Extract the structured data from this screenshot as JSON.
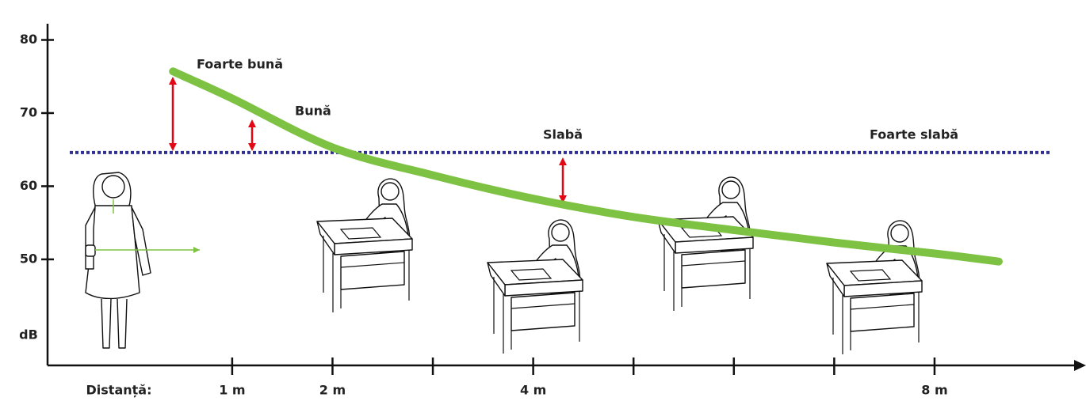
{
  "chart_data": {
    "type": "line",
    "x": [
      0.41,
      1,
      2,
      3,
      4,
      5,
      6,
      7,
      8,
      8.64
    ],
    "series": [
      {
        "color": "#7dc242",
        "values": [
          75.7,
          72,
          65.3,
          61.5,
          58.3,
          55.8,
          54,
          52.3,
          50.8,
          49.7
        ]
      }
    ],
    "threshold": {
      "value": 64.6,
      "color": "#2e3192"
    },
    "xlim": [
      -0.84,
      9.47
    ],
    "ylim": [
      35.5,
      82
    ],
    "xticks": [
      {
        "value": 1,
        "label": "1 m"
      },
      {
        "value": 2,
        "label": "2 m"
      },
      {
        "value": 3,
        "label": null
      },
      {
        "value": 4,
        "label": "4 m"
      },
      {
        "value": 5,
        "label": null
      },
      {
        "value": 6,
        "label": null
      },
      {
        "value": 7,
        "label": null
      },
      {
        "value": 8,
        "label": "8 m"
      }
    ],
    "yticks": [
      50,
      60,
      70,
      80
    ],
    "ylabel": "dB",
    "xlabel": "Distanță:",
    "annotations": [
      "Foarte bună",
      "Bună",
      "Slabă",
      "Foarte slabă"
    ]
  }
}
